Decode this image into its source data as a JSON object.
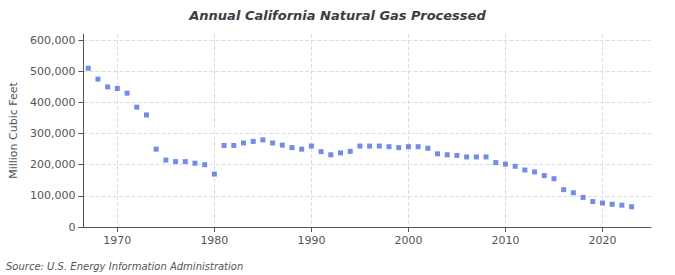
{
  "chart_data": {
    "type": "scatter",
    "title": "Annual California Natural Gas Processed",
    "ylabel": "Million Cubic Feet",
    "annotation": "Source: U.S. Energy Information Administration",
    "marker": "square",
    "grid": true,
    "x": [
      1967,
      1968,
      1969,
      1970,
      1971,
      1972,
      1973,
      1974,
      1975,
      1976,
      1977,
      1978,
      1979,
      1980,
      1981,
      1982,
      1983,
      1984,
      1985,
      1986,
      1987,
      1988,
      1989,
      1990,
      1991,
      1992,
      1993,
      1994,
      1995,
      1996,
      1997,
      1998,
      1999,
      2000,
      2001,
      2002,
      2003,
      2004,
      2005,
      2006,
      2007,
      2008,
      2009,
      2010,
      2011,
      2012,
      2013,
      2014,
      2015,
      2016,
      2017,
      2018,
      2019,
      2020,
      2021,
      2022,
      2023
    ],
    "values": [
      510000,
      475000,
      450000,
      445000,
      430000,
      385000,
      360000,
      250000,
      215000,
      210000,
      210000,
      205000,
      200000,
      170000,
      262000,
      262000,
      270000,
      275000,
      280000,
      270000,
      263000,
      255000,
      250000,
      260000,
      242000,
      232000,
      238000,
      243000,
      260000,
      260000,
      260000,
      258000,
      255000,
      258000,
      258000,
      253000,
      235000,
      232000,
      230000,
      225000,
      225000,
      225000,
      207000,
      202000,
      195000,
      183000,
      177000,
      165000,
      155000,
      120000,
      110000,
      95000,
      82000,
      77000,
      73000,
      70000,
      65000
    ],
    "xlim": [
      1966.5,
      2025
    ],
    "xticks": [
      1970,
      1980,
      1990,
      2000,
      2010,
      2020
    ],
    "ylim": [
      0,
      620000
    ],
    "yticks": [
      0,
      {
        "value": 100000,
        "label": "100,000"
      },
      {
        "value": 200000,
        "label": "200,000"
      },
      {
        "value": 300000,
        "label": "300,000"
      },
      {
        "value": 400000,
        "label": "400,000"
      },
      {
        "value": 500000,
        "label": "500,000"
      },
      {
        "value": 600000,
        "label": "600,000"
      }
    ]
  }
}
